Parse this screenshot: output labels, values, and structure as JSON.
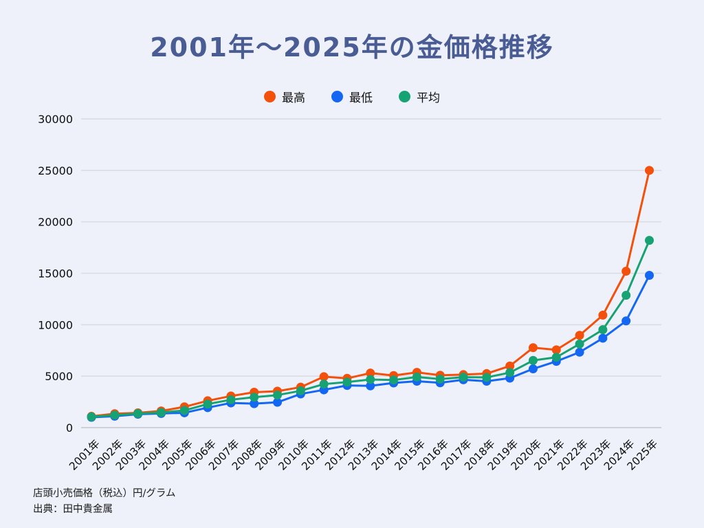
{
  "chart_data": {
    "type": "line",
    "title": "2001年〜2025年の金価格推移",
    "x_categories": [
      "2001年",
      "2002年",
      "2003年",
      "2004年",
      "2005年",
      "2006年",
      "2007年",
      "2008年",
      "2009年",
      "2010年",
      "2011年",
      "2012年",
      "2013年",
      "2014年",
      "2015年",
      "2016年",
      "2017年",
      "2018年",
      "2019年",
      "2020年",
      "2021年",
      "2022年",
      "2023年",
      "2024年",
      "2025年"
    ],
    "series": [
      {
        "key": "high",
        "name": "最高",
        "color": "#F3500B",
        "values": [
          1100,
          1350,
          1440,
          1620,
          2020,
          2610,
          3070,
          3440,
          3540,
          3930,
          4950,
          4790,
          5300,
          5060,
          5370,
          5090,
          5150,
          5250,
          5990,
          7770,
          7560,
          8970,
          10930,
          15200,
          25000
        ]
      },
      {
        "key": "low",
        "name": "最低",
        "color": "#1467F2",
        "values": [
          1000,
          1110,
          1300,
          1380,
          1440,
          1940,
          2400,
          2330,
          2460,
          3270,
          3670,
          4100,
          4060,
          4340,
          4510,
          4360,
          4650,
          4510,
          4810,
          5710,
          6440,
          7330,
          8690,
          10370,
          14800
        ]
      },
      {
        "key": "avg",
        "name": "平均",
        "color": "#16A273",
        "values": [
          1050,
          1220,
          1370,
          1470,
          1670,
          2290,
          2710,
          2960,
          3160,
          3580,
          4230,
          4430,
          4680,
          4630,
          4920,
          4720,
          4900,
          4880,
          5350,
          6530,
          6840,
          8130,
          9520,
          12860,
          18200
        ]
      }
    ],
    "ylim": [
      0,
      30000
    ],
    "y_ticks": [
      0,
      5000,
      10000,
      15000,
      20000,
      25000,
      30000
    ],
    "grid": true,
    "legend_position": "top",
    "draw_order": [
      "high",
      "low",
      "avg"
    ]
  },
  "footer": {
    "line1": "店頭小売価格（税込）円/グラム",
    "line2": "出典：田中貴金属"
  },
  "colors": {
    "background": "#EEF1F9",
    "title": "#4A5C94",
    "gridline": "#D9DBE2",
    "zeroline": "#C3C6CE",
    "tick_text": "#0E0E0E"
  }
}
